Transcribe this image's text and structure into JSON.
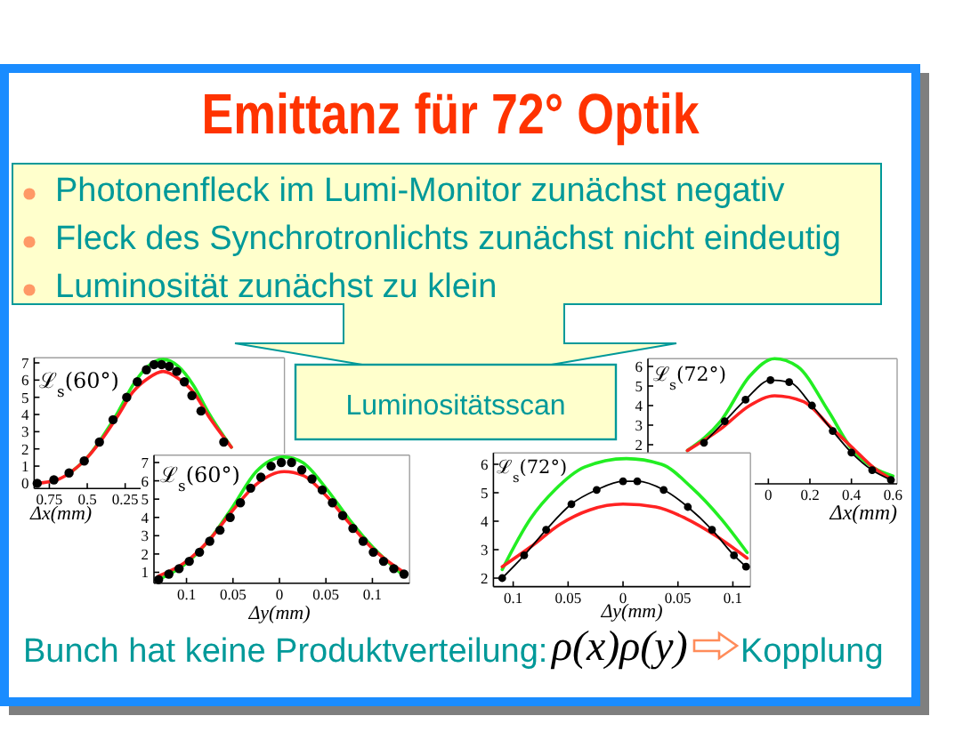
{
  "chart_data": [
    {
      "type": "other",
      "title": "Emittanz für 72° Optik",
      "annotations": [
        "Photonenfleck im Lumi-Monitor zunächst negativ",
        "Fleck des Synchrotronlichts zunächst nicht eindeutig",
        "Luminosität zunächst zu klein",
        "Luminositätsscan"
      ]
    },
    {
      "type": "line",
      "xlabel": "Δx(mm)",
      "ylabel": "ℒ$_{s}$(60°)",
      "xlim": [
        -0.85,
        0.8
      ],
      "ylim": [
        -0.3,
        7.3
      ],
      "xticks": [
        {
          "value": -0.75,
          "label": "0.75"
        },
        {
          "value": -0.5,
          "label": "0.5"
        },
        {
          "value": -0.25,
          "label": "0.25"
        }
      ],
      "yticks": [
        0,
        1,
        2,
        3,
        4,
        5,
        6,
        7
      ],
      "series": [
        {
          "type": "line",
          "color": "#22ee22",
          "x": [
            -0.6,
            -0.5,
            -0.4,
            -0.3,
            -0.2,
            -0.1,
            0,
            0.1,
            0.2,
            0.3,
            0.45
          ],
          "values": [
            0.7,
            1.5,
            2.7,
            4.1,
            5.7,
            6.8,
            7.2,
            6.8,
            5.7,
            4.1,
            2.1
          ]
        },
        {
          "type": "line",
          "color": "#ff2222",
          "x": [
            -0.83,
            -0.7,
            -0.6,
            -0.5,
            -0.4,
            -0.3,
            -0.2,
            -0.1,
            0,
            0.1,
            0.2,
            0.3,
            0.45
          ],
          "values": [
            0,
            0.2,
            0.7,
            1.5,
            2.6,
            3.9,
            5.3,
            6.1,
            6.5,
            6.1,
            5.3,
            3.9,
            2.1
          ]
        },
        {
          "type": "scatter",
          "color": "#000000",
          "marker": "circle",
          "x": [
            -0.83,
            -0.72,
            -0.62,
            -0.52,
            -0.42,
            -0.33,
            -0.24,
            -0.17,
            -0.11,
            -0.06,
            -0.01,
            0.04,
            0.09,
            0.14,
            0.19,
            0.25,
            0.4
          ],
          "values": [
            0,
            0.2,
            0.6,
            1.3,
            2.4,
            3.7,
            5.0,
            5.9,
            6.6,
            6.9,
            6.9,
            6.8,
            6.5,
            5.9,
            5.1,
            4.2,
            2.4
          ]
        }
      ]
    },
    {
      "type": "line",
      "xlabel": "Δx(mm)",
      "ylabel": "ℒ$_{s}$(72°)",
      "xlim": [
        -0.58,
        0.62
      ],
      "ylim": [
        0,
        6.4
      ],
      "xticks": [
        0,
        0.2,
        0.4,
        0.6
      ],
      "yticks": [
        2,
        3,
        4,
        5,
        6
      ],
      "series": [
        {
          "type": "line",
          "color": "#22ee22",
          "x": [
            -0.39,
            -0.23,
            -0.09,
            0.03,
            0.14,
            0.29,
            0.4,
            0.51,
            0.6
          ],
          "values": [
            1.7,
            3.2,
            5.5,
            6.4,
            6.0,
            3.7,
            1.8,
            0.8,
            0.4
          ]
        },
        {
          "type": "line",
          "color": "#ff2222",
          "x": [
            -0.39,
            -0.23,
            -0.09,
            0.03,
            0.17,
            0.3,
            0.4,
            0.51,
            0.6
          ],
          "values": [
            1.7,
            2.8,
            4.0,
            4.5,
            4.2,
            2.9,
            1.9,
            0.8,
            0.2
          ]
        },
        {
          "type": "line",
          "color": "#000000",
          "marker": "circle",
          "x": [
            -0.31,
            -0.21,
            -0.11,
            0.01,
            0.1,
            0.21,
            0.31,
            0.4,
            0.5,
            0.59
          ],
          "values": [
            2.1,
            3.2,
            4.3,
            5.3,
            5.2,
            4.0,
            2.7,
            1.6,
            0.7,
            0.2
          ]
        }
      ]
    },
    {
      "type": "line",
      "xlabel": "Δy(mm)",
      "ylabel": "ℒ$_{s}$(60°)",
      "xlim": [
        -0.135,
        0.14
      ],
      "ylim": [
        0.4,
        7.4
      ],
      "xticks": [
        {
          "value": -0.1,
          "label": "0.1"
        },
        {
          "value": -0.05,
          "label": "0.05"
        },
        0,
        0.05,
        0.1
      ],
      "yticks": [
        1,
        2,
        3,
        4,
        5,
        6,
        7
      ],
      "series": [
        {
          "type": "line",
          "color": "#22ee22",
          "x": [
            -0.13,
            -0.1,
            -0.075,
            -0.05,
            -0.025,
            0.005,
            0.025,
            0.05,
            0.075,
            0.1,
            0.134
          ],
          "values": [
            0.6,
            1.5,
            2.8,
            4.6,
            6.5,
            7.3,
            7.0,
            5.6,
            3.9,
            2.4,
            0.8
          ]
        },
        {
          "type": "line",
          "color": "#ff2222",
          "x": [
            -0.13,
            -0.1,
            -0.075,
            -0.05,
            -0.025,
            0.005,
            0.025,
            0.05,
            0.075,
            0.1,
            0.134
          ],
          "values": [
            0.8,
            1.6,
            2.8,
            4.4,
            5.8,
            6.5,
            6.3,
            5.2,
            3.7,
            2.3,
            1.0
          ]
        },
        {
          "type": "scatter",
          "color": "#000000",
          "marker": "circle",
          "x": [
            -0.13,
            -0.119,
            -0.108,
            -0.097,
            -0.086,
            -0.075,
            -0.064,
            -0.053,
            -0.042,
            -0.031,
            -0.02,
            -0.009,
            0.002,
            0.013,
            0.024,
            0.035,
            0.046,
            0.057,
            0.068,
            0.079,
            0.09,
            0.101,
            0.112,
            0.123,
            0.134
          ],
          "values": [
            0.6,
            0.9,
            1.2,
            1.6,
            2.1,
            2.7,
            3.3,
            4.0,
            4.8,
            5.6,
            6.2,
            6.8,
            7.0,
            7.0,
            6.6,
            6.1,
            5.5,
            4.8,
            4.1,
            3.4,
            2.7,
            2.1,
            1.6,
            1.2,
            0.9
          ]
        }
      ]
    },
    {
      "type": "line",
      "xlabel": "Δy(mm)",
      "ylabel": "ℒ$_{s}$(72°)",
      "xlim": [
        -0.118,
        0.116
      ],
      "ylim": [
        1.7,
        6.4
      ],
      "xticks": [
        {
          "value": -0.1,
          "label": "0.1"
        },
        {
          "value": -0.05,
          "label": "0.05"
        },
        0,
        0.05,
        0.1
      ],
      "yticks": [
        2,
        3,
        4,
        5,
        6
      ],
      "series": [
        {
          "type": "line",
          "color": "#22ee22",
          "x": [
            -0.11,
            -0.084,
            -0.062,
            -0.035,
            0.003,
            0.035,
            0.062,
            0.089,
            0.113
          ],
          "values": [
            2.3,
            4.1,
            5.1,
            5.9,
            6.2,
            6.0,
            5.2,
            4.1,
            2.9
          ]
        },
        {
          "type": "line",
          "color": "#ff2222",
          "x": [
            -0.11,
            -0.084,
            -0.057,
            -0.03,
            0,
            0.03,
            0.057,
            0.084,
            0.113
          ],
          "values": [
            2.4,
            3.1,
            3.9,
            4.4,
            4.6,
            4.5,
            4.1,
            3.5,
            2.7
          ]
        },
        {
          "type": "line",
          "color": "#000000",
          "marker": "circle",
          "x": [
            -0.11,
            -0.09,
            -0.07,
            -0.047,
            -0.024,
            0,
            0.013,
            0.037,
            0.059,
            0.081,
            0.101,
            0.112
          ],
          "values": [
            2.0,
            2.8,
            3.7,
            4.6,
            5.1,
            5.4,
            5.4,
            5.1,
            4.5,
            3.7,
            2.8,
            2.4
          ]
        }
      ]
    },
    {
      "type": "other",
      "annotations": [
        "Bunch hat keine Produktverteilung:",
        "ρ(x)ρ(y)",
        "Kopplung"
      ]
    }
  ]
}
